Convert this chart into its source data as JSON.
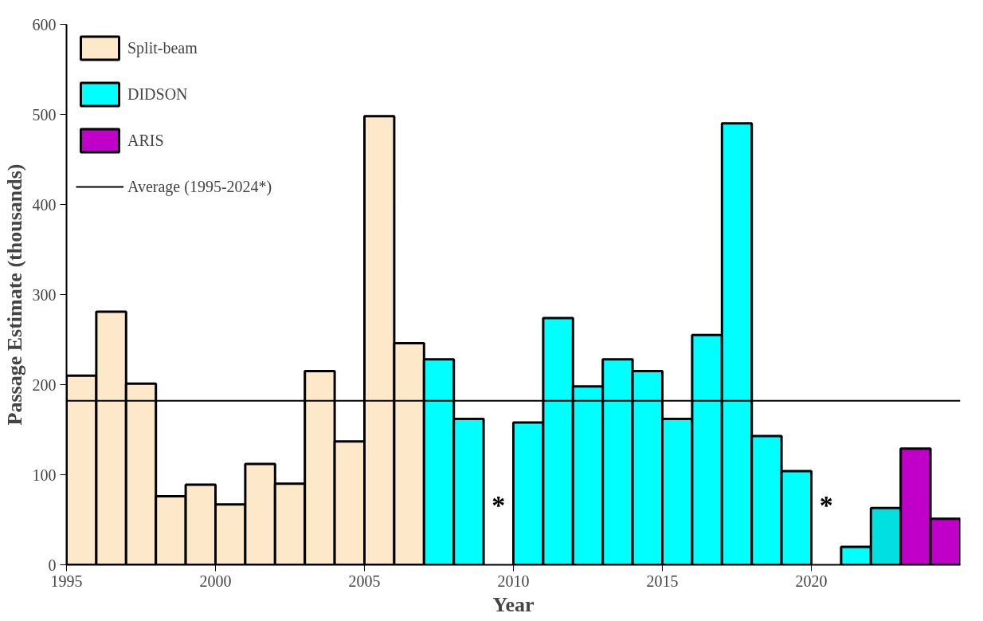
{
  "chart_data": {
    "type": "bar",
    "xlabel": "Year",
    "ylabel": "Passage Estimate (thousands)",
    "xlim": [
      1995,
      2025
    ],
    "xticks": [
      1995,
      2000,
      2005,
      2010,
      2015,
      2020
    ],
    "ylim": [
      0,
      600
    ],
    "yticks": [
      0,
      100,
      200,
      300,
      400,
      500,
      600
    ],
    "series": [
      {
        "name": "Split-beam",
        "color": "#fde9c9",
        "x": [
          1995,
          1996,
          1997,
          1998,
          1999,
          2000,
          2001,
          2002,
          2003,
          2004,
          2005,
          2006
        ],
        "values": [
          210,
          281,
          201,
          76,
          89,
          67,
          112,
          90,
          215,
          137,
          498,
          246
        ]
      },
      {
        "name": "DIDSON",
        "color": "#00ffff",
        "x": [
          2007,
          2008,
          2009,
          2010,
          2011,
          2012,
          2013,
          2014,
          2015,
          2016,
          2017,
          2018,
          2019,
          2020,
          2021,
          2022
        ],
        "values": [
          228,
          162,
          null,
          158,
          274,
          198,
          228,
          215,
          162,
          255,
          490,
          143,
          104,
          null,
          20,
          63
        ],
        "colors": [
          null,
          null,
          null,
          null,
          null,
          null,
          null,
          null,
          null,
          null,
          null,
          null,
          null,
          null,
          null,
          "#00e0e0"
        ]
      },
      {
        "name": "ARIS",
        "color": "#c000c8",
        "x": [
          2023,
          2024
        ],
        "values": [
          129,
          51
        ]
      }
    ],
    "ref_lines": [
      {
        "axis": "y",
        "value": 182,
        "label": "Average (1995-2024*)",
        "color": "#000000"
      }
    ],
    "annotations": [
      "*",
      "*"
    ],
    "legend": "top left",
    "grid": false
  }
}
